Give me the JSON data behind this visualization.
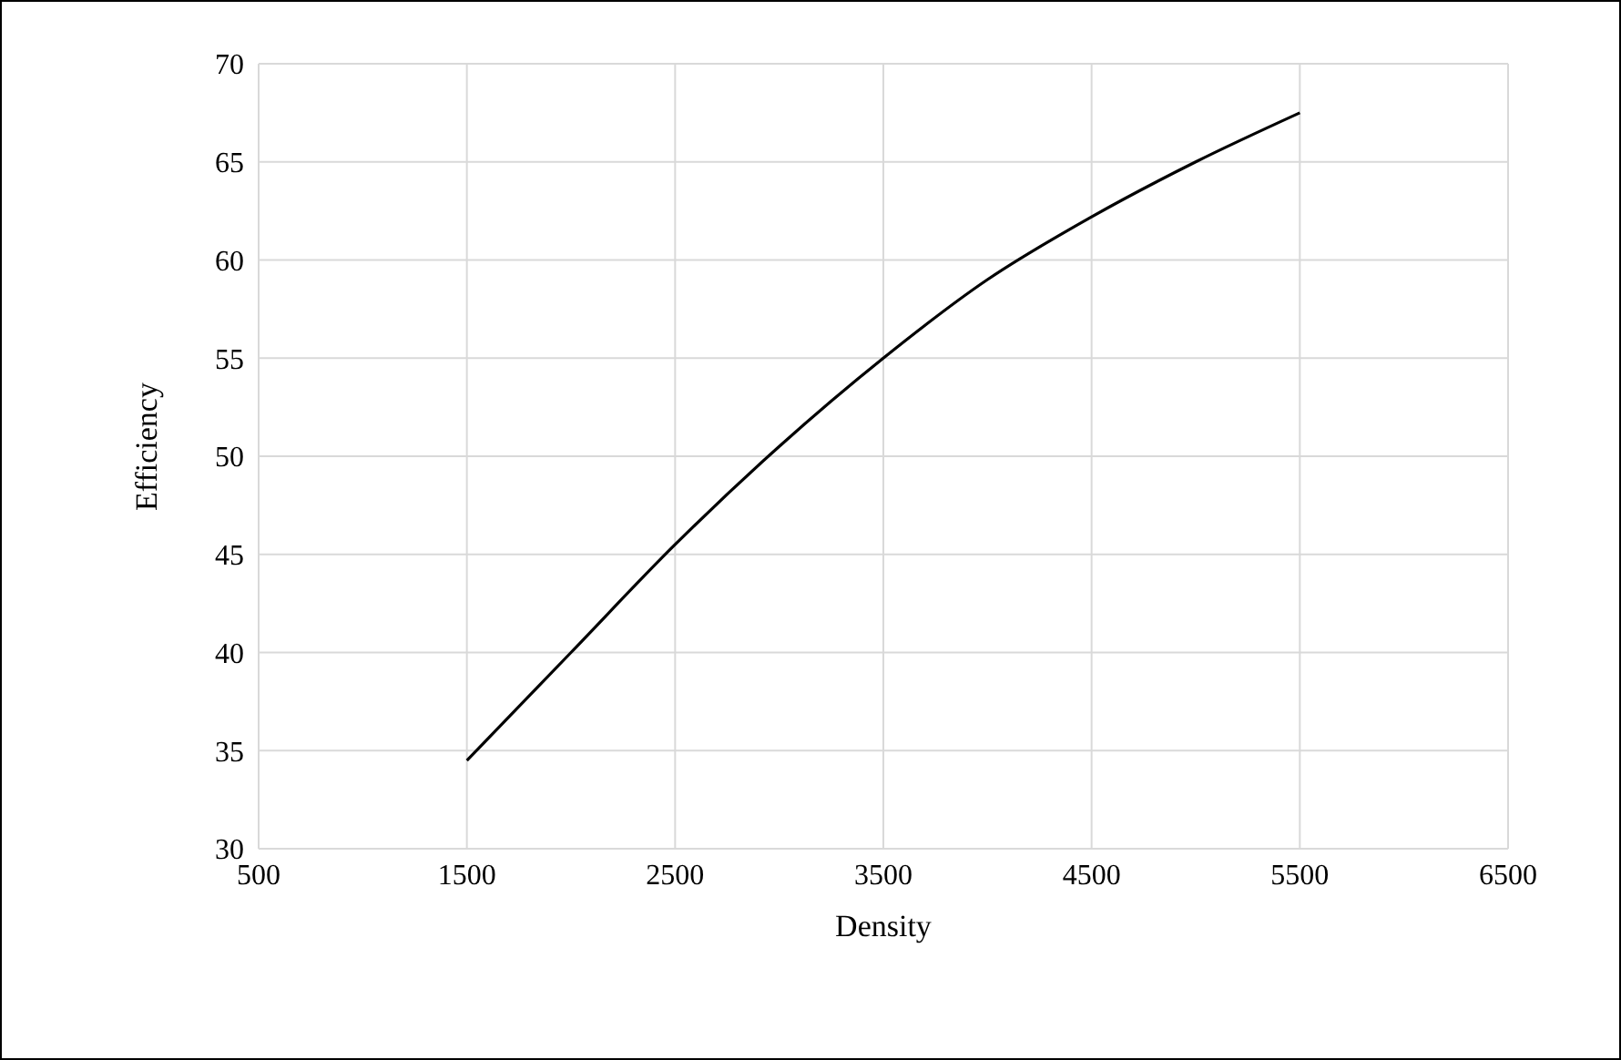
{
  "chart_data": {
    "type": "line",
    "xlabel": "Density",
    "ylabel": "Efficiency",
    "x": [
      1500,
      2000,
      2500,
      3000,
      3500,
      4000,
      4500,
      5000,
      5500
    ],
    "series": [
      {
        "color": "#000000",
        "values": [
          34.5,
          40,
          45.5,
          50.5,
          55,
          59,
          62.2,
          65,
          67.5
        ]
      }
    ],
    "xlim": [
      500,
      6500
    ],
    "xticks": [
      500,
      1500,
      2500,
      3500,
      4500,
      5500,
      6500
    ],
    "ylim": [
      30,
      70
    ],
    "yticks": [
      30,
      35,
      40,
      45,
      50,
      55,
      60,
      65,
      70
    ],
    "grid": true,
    "legend": false,
    "marker": "none",
    "line_style": "solid"
  }
}
